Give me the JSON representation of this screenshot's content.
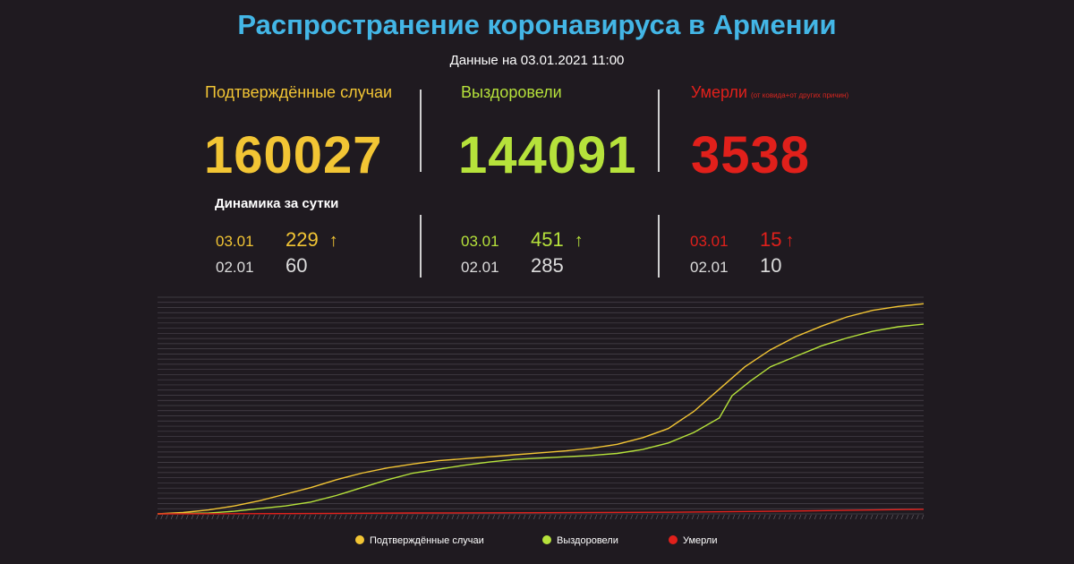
{
  "header": {
    "title": "Распространение коронавируса в Армении",
    "subtitle": "Данные на 03.01.2021 11:00"
  },
  "stats": [
    {
      "label": "Подтверждённые случаи",
      "note": "",
      "value": "160027",
      "color": "#f2c534"
    },
    {
      "label": "Выздоровели",
      "note": "",
      "value": "144091",
      "color": "#b6e23b"
    },
    {
      "label": "Умерли",
      "note": "(от ковида+от других причин)",
      "value": "3538",
      "color": "#e1201b"
    }
  ],
  "dynamics": {
    "title": "Динамика за сутки",
    "groups": [
      {
        "today_date": "03.01",
        "today_value": "229",
        "yesterday_date": "02.01",
        "yesterday_value": "60",
        "arrow": "↑"
      },
      {
        "today_date": "03.01",
        "today_value": "451",
        "yesterday_date": "02.01",
        "yesterday_value": "285",
        "arrow": "↑"
      },
      {
        "today_date": "03.01",
        "today_value": "15",
        "yesterday_date": "02.01",
        "yesterday_value": "10",
        "arrow": "↑"
      }
    ]
  },
  "chart_data": {
    "type": "line",
    "x_start": "2020-03-01",
    "x_end": "2021-01-03",
    "ylim": [
      0,
      165000
    ],
    "grid": true,
    "legend_position": "bottom",
    "series": [
      {
        "name": "Подтверждённые случаи",
        "color": "#f2c534",
        "points": [
          [
            0,
            0
          ],
          [
            10,
            1000
          ],
          [
            20,
            3000
          ],
          [
            30,
            6000
          ],
          [
            40,
            10000
          ],
          [
            50,
            15000
          ],
          [
            60,
            20000
          ],
          [
            70,
            26000
          ],
          [
            80,
            31000
          ],
          [
            90,
            35000
          ],
          [
            100,
            38000
          ],
          [
            110,
            40500
          ],
          [
            120,
            42000
          ],
          [
            130,
            43500
          ],
          [
            140,
            45000
          ],
          [
            150,
            46500
          ],
          [
            160,
            48000
          ],
          [
            170,
            50000
          ],
          [
            180,
            53000
          ],
          [
            190,
            58000
          ],
          [
            200,
            65000
          ],
          [
            210,
            78000
          ],
          [
            220,
            95000
          ],
          [
            230,
            112000
          ],
          [
            240,
            125000
          ],
          [
            250,
            135000
          ],
          [
            260,
            143000
          ],
          [
            270,
            150000
          ],
          [
            280,
            155000
          ],
          [
            290,
            158000
          ],
          [
            300,
            160000
          ]
        ]
      },
      {
        "name": "Выздоровели",
        "color": "#b6e23b",
        "points": [
          [
            0,
            0
          ],
          [
            20,
            600
          ],
          [
            30,
            2000
          ],
          [
            40,
            4000
          ],
          [
            50,
            6000
          ],
          [
            60,
            9000
          ],
          [
            70,
            14000
          ],
          [
            80,
            20000
          ],
          [
            90,
            26000
          ],
          [
            100,
            31000
          ],
          [
            110,
            34000
          ],
          [
            120,
            37000
          ],
          [
            130,
            39500
          ],
          [
            140,
            41500
          ],
          [
            150,
            42500
          ],
          [
            160,
            43500
          ],
          [
            170,
            44500
          ],
          [
            180,
            46000
          ],
          [
            190,
            49000
          ],
          [
            200,
            54000
          ],
          [
            210,
            62000
          ],
          [
            220,
            73000
          ],
          [
            225,
            90000
          ],
          [
            232,
            101000
          ],
          [
            240,
            112000
          ],
          [
            250,
            120000
          ],
          [
            260,
            128000
          ],
          [
            270,
            134000
          ],
          [
            280,
            139000
          ],
          [
            290,
            142500
          ],
          [
            300,
            144500
          ]
        ]
      },
      {
        "name": "Умерли",
        "color": "#e1201b",
        "points": [
          [
            0,
            0
          ],
          [
            50,
            200
          ],
          [
            100,
            700
          ],
          [
            150,
            900
          ],
          [
            200,
            1200
          ],
          [
            250,
            2200
          ],
          [
            300,
            3500
          ]
        ]
      }
    ]
  }
}
